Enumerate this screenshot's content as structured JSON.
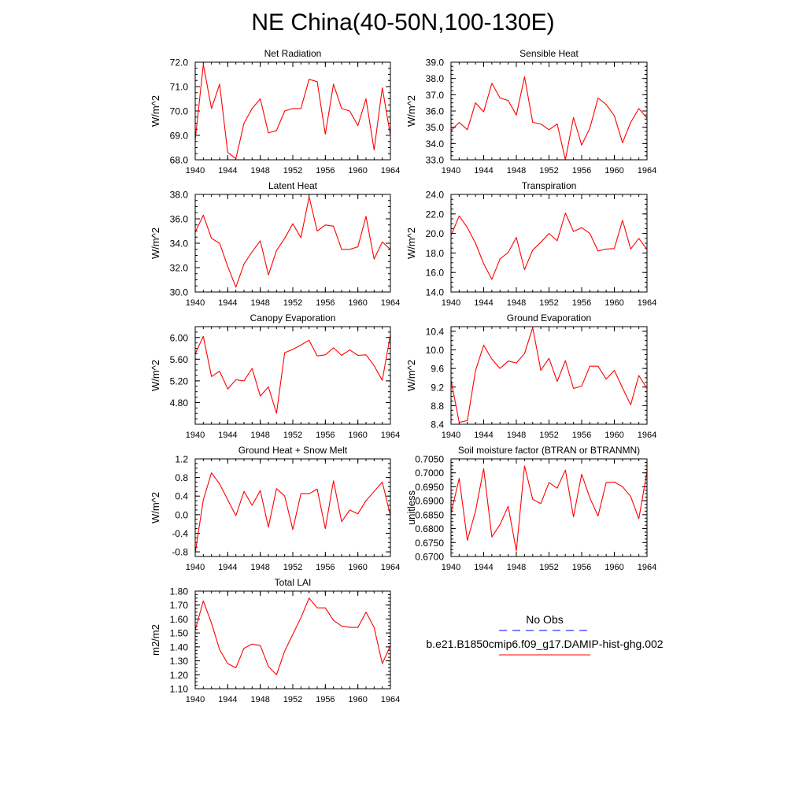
{
  "title": "NE China(40-50N,100-130E)",
  "legend": {
    "entries": [
      {
        "label": "No Obs",
        "color": "#0000ff",
        "style": "dashed"
      },
      {
        "label": "b.e21.B1850cmip6.f09_g17.DAMIP-hist-ghg.002",
        "color": "#ff0000",
        "style": "solid"
      }
    ]
  },
  "chart_data": [
    {
      "type": "line",
      "title": "Net Radiation",
      "ylabel": "W/m^2",
      "ylim": [
        68.0,
        72.0
      ],
      "yticks": [
        "68.0",
        "69.0",
        "70.0",
        "71.0",
        "72.0"
      ],
      "xlim": [
        1940,
        1964
      ],
      "xticks": [
        "1940",
        "1944",
        "1948",
        "1952",
        "1956",
        "1960",
        "1964"
      ],
      "series": [
        {
          "color": "#ff0000",
          "x": [
            1940,
            1941,
            1942,
            1943,
            1944,
            1945,
            1946,
            1947,
            1948,
            1949,
            1950,
            1951,
            1952,
            1953,
            1954,
            1955,
            1956,
            1957,
            1958,
            1959,
            1960,
            1961,
            1962,
            1963,
            1964
          ],
          "values": [
            68.8,
            71.9,
            70.1,
            71.1,
            68.3,
            68.05,
            69.5,
            70.1,
            70.5,
            69.1,
            69.2,
            70.0,
            70.1,
            70.1,
            71.3,
            71.2,
            69.05,
            71.1,
            70.1,
            70.0,
            69.4,
            70.5,
            68.4,
            70.95,
            69.0
          ]
        }
      ]
    },
    {
      "type": "line",
      "title": "Sensible Heat",
      "ylabel": "W/m^2",
      "ylim": [
        33.0,
        39.0
      ],
      "yticks": [
        "33.0",
        "34.0",
        "35.0",
        "36.0",
        "37.0",
        "38.0",
        "39.0"
      ],
      "xlim": [
        1940,
        1964
      ],
      "xticks": [
        "1940",
        "1944",
        "1948",
        "1952",
        "1956",
        "1960",
        "1964"
      ],
      "series": [
        {
          "color": "#ff0000",
          "x": [
            1940,
            1941,
            1942,
            1943,
            1944,
            1945,
            1946,
            1947,
            1948,
            1949,
            1950,
            1951,
            1952,
            1953,
            1954,
            1955,
            1956,
            1957,
            1958,
            1959,
            1960,
            1961,
            1962,
            1963,
            1964
          ],
          "values": [
            34.8,
            35.3,
            34.85,
            36.5,
            35.95,
            37.7,
            36.8,
            36.65,
            35.75,
            38.1,
            35.3,
            35.2,
            34.85,
            35.2,
            33.0,
            35.6,
            33.9,
            34.95,
            36.8,
            36.4,
            35.7,
            34.05,
            35.3,
            36.15,
            35.55
          ]
        }
      ]
    },
    {
      "type": "line",
      "title": "Latent Heat",
      "ylabel": "W/m^2",
      "ylim": [
        30.0,
        38.0
      ],
      "yticks": [
        "30.0",
        "32.0",
        "34.0",
        "36.0",
        "38.0"
      ],
      "xlim": [
        1940,
        1964
      ],
      "xticks": [
        "1940",
        "1944",
        "1948",
        "1952",
        "1956",
        "1960",
        "1964"
      ],
      "series": [
        {
          "color": "#ff0000",
          "x": [
            1940,
            1941,
            1942,
            1943,
            1944,
            1945,
            1946,
            1947,
            1948,
            1949,
            1950,
            1951,
            1952,
            1953,
            1954,
            1955,
            1956,
            1957,
            1958,
            1959,
            1960,
            1961,
            1962,
            1963,
            1964
          ],
          "values": [
            34.9,
            36.3,
            34.4,
            34.0,
            32.1,
            30.4,
            32.3,
            33.3,
            34.2,
            31.4,
            33.4,
            34.4,
            35.6,
            34.45,
            37.8,
            35.0,
            35.5,
            35.4,
            33.5,
            33.5,
            33.7,
            36.2,
            32.7,
            34.1,
            33.5
          ]
        }
      ]
    },
    {
      "type": "line",
      "title": "Transpiration",
      "ylabel": "W/m^2",
      "ylim": [
        14.0,
        24.0
      ],
      "yticks": [
        "14.0",
        "16.0",
        "18.0",
        "20.0",
        "22.0",
        "24.0"
      ],
      "xlim": [
        1940,
        1964
      ],
      "xticks": [
        "1940",
        "1944",
        "1948",
        "1952",
        "1956",
        "1960",
        "1964"
      ],
      "series": [
        {
          "color": "#ff0000",
          "x": [
            1940,
            1941,
            1942,
            1943,
            1944,
            1945,
            1946,
            1947,
            1948,
            1949,
            1950,
            1951,
            1952,
            1953,
            1954,
            1955,
            1956,
            1957,
            1958,
            1959,
            1960,
            1961,
            1962,
            1963,
            1964
          ],
          "values": [
            19.8,
            21.8,
            20.6,
            19.0,
            16.9,
            15.3,
            17.4,
            18.05,
            19.6,
            16.3,
            18.3,
            19.1,
            20.0,
            19.25,
            22.1,
            20.2,
            20.6,
            20.0,
            18.2,
            18.4,
            18.45,
            21.35,
            18.4,
            19.5,
            18.35
          ]
        }
      ]
    },
    {
      "type": "line",
      "title": "Canopy Evaporation",
      "ylabel": "W/m^2",
      "ylim": [
        4.4,
        6.2
      ],
      "yticks": [
        "4.80",
        "5.20",
        "5.60",
        "6.00"
      ],
      "xlim": [
        1940,
        1964
      ],
      "xticks": [
        "1940",
        "1944",
        "1948",
        "1952",
        "1956",
        "1960",
        "1964"
      ],
      "series": [
        {
          "color": "#ff0000",
          "x": [
            1940,
            1941,
            1942,
            1943,
            1944,
            1945,
            1946,
            1947,
            1948,
            1949,
            1950,
            1951,
            1952,
            1953,
            1954,
            1955,
            1956,
            1957,
            1958,
            1959,
            1960,
            1961,
            1962,
            1963,
            1964
          ],
          "values": [
            5.7,
            6.02,
            5.28,
            5.38,
            5.05,
            5.22,
            5.2,
            5.43,
            4.92,
            5.09,
            4.6,
            5.72,
            5.78,
            5.86,
            5.95,
            5.66,
            5.68,
            5.81,
            5.67,
            5.77,
            5.67,
            5.68,
            5.48,
            5.21,
            6.05
          ]
        }
      ]
    },
    {
      "type": "line",
      "title": "Ground Evaporation",
      "ylabel": "W/m^2",
      "ylim": [
        8.4,
        10.5
      ],
      "yticks": [
        "8.4",
        "8.8",
        "9.2",
        "9.6",
        "10.0",
        "10.4"
      ],
      "xlim": [
        1940,
        1964
      ],
      "xticks": [
        "1940",
        "1944",
        "1948",
        "1952",
        "1956",
        "1960",
        "1964"
      ],
      "series": [
        {
          "color": "#ff0000",
          "x": [
            1940,
            1941,
            1942,
            1943,
            1944,
            1945,
            1946,
            1947,
            1948,
            1949,
            1950,
            1951,
            1952,
            1953,
            1954,
            1955,
            1956,
            1957,
            1958,
            1959,
            1960,
            1961,
            1962,
            1963,
            1964
          ],
          "values": [
            9.35,
            8.44,
            8.48,
            9.55,
            10.1,
            9.8,
            9.6,
            9.76,
            9.72,
            9.92,
            10.48,
            9.56,
            9.82,
            9.32,
            9.77,
            9.17,
            9.22,
            9.65,
            9.65,
            9.37,
            9.56,
            9.18,
            8.82,
            9.45,
            9.17
          ]
        }
      ]
    },
    {
      "type": "line",
      "title": "Ground Heat + Snow Melt",
      "ylabel": "W/m^2",
      "ylim": [
        -0.9,
        1.2
      ],
      "yticks": [
        "-0.8",
        "-0.4",
        "0.0",
        "0.4",
        "0.8",
        "1.2"
      ],
      "xlim": [
        1940,
        1964
      ],
      "xticks": [
        "1940",
        "1944",
        "1948",
        "1952",
        "1956",
        "1960",
        "1964"
      ],
      "series": [
        {
          "color": "#ff0000",
          "x": [
            1940,
            1941,
            1942,
            1943,
            1944,
            1945,
            1946,
            1947,
            1948,
            1949,
            1950,
            1951,
            1952,
            1953,
            1954,
            1955,
            1956,
            1957,
            1958,
            1959,
            1960,
            1961,
            1962,
            1963,
            1964
          ],
          "values": [
            -0.82,
            0.32,
            0.9,
            0.66,
            0.32,
            -0.02,
            0.5,
            0.2,
            0.52,
            -0.27,
            0.56,
            0.4,
            -0.32,
            0.45,
            0.45,
            0.55,
            -0.3,
            0.73,
            -0.15,
            0.1,
            0.02,
            0.3,
            0.5,
            0.7,
            -0.02
          ]
        }
      ]
    },
    {
      "type": "line",
      "title": "Soil moisture factor (BTRAN or BTRANMN)",
      "ylabel": "unitless",
      "ylim": [
        0.67,
        0.705
      ],
      "yticks": [
        "0.6700",
        "0.6750",
        "0.6800",
        "0.6850",
        "0.6900",
        "0.6950",
        "0.7000",
        "0.7050"
      ],
      "xlim": [
        1940,
        1964
      ],
      "xticks": [
        "1940",
        "1944",
        "1948",
        "1952",
        "1956",
        "1960",
        "1964"
      ],
      "series": [
        {
          "color": "#ff0000",
          "x": [
            1940,
            1941,
            1942,
            1943,
            1944,
            1945,
            1946,
            1947,
            1948,
            1949,
            1950,
            1951,
            1952,
            1953,
            1954,
            1955,
            1956,
            1957,
            1958,
            1959,
            1960,
            1961,
            1962,
            1963,
            1964
          ],
          "values": [
            0.6855,
            0.698,
            0.6758,
            0.6862,
            0.7015,
            0.677,
            0.6815,
            0.688,
            0.672,
            0.7025,
            0.6905,
            0.689,
            0.6965,
            0.6945,
            0.701,
            0.6842,
            0.6995,
            0.691,
            0.6845,
            0.6965,
            0.6967,
            0.695,
            0.6915,
            0.6835,
            0.7005
          ]
        }
      ]
    },
    {
      "type": "line",
      "title": "Total LAI",
      "ylabel": "m2/m2",
      "ylim": [
        1.1,
        1.8
      ],
      "yticks": [
        "1.10",
        "1.20",
        "1.30",
        "1.40",
        "1.50",
        "1.60",
        "1.70",
        "1.80"
      ],
      "xlim": [
        1940,
        1964
      ],
      "xticks": [
        "1940",
        "1944",
        "1948",
        "1952",
        "1956",
        "1960",
        "1964"
      ],
      "series": [
        {
          "color": "#ff0000",
          "x": [
            1940,
            1941,
            1942,
            1943,
            1944,
            1945,
            1946,
            1947,
            1948,
            1949,
            1950,
            1951,
            1952,
            1953,
            1954,
            1955,
            1956,
            1957,
            1958,
            1959,
            1960,
            1961,
            1962,
            1963,
            1964
          ],
          "values": [
            1.52,
            1.73,
            1.57,
            1.38,
            1.28,
            1.25,
            1.39,
            1.42,
            1.41,
            1.26,
            1.2,
            1.37,
            1.49,
            1.61,
            1.75,
            1.68,
            1.68,
            1.59,
            1.55,
            1.54,
            1.54,
            1.65,
            1.54,
            1.28,
            1.41
          ]
        }
      ]
    }
  ]
}
